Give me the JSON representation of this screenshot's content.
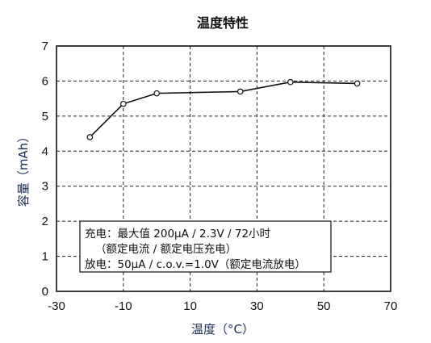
{
  "chart_data": {
    "type": "line",
    "title": "温度特性",
    "xlabel": "温度（°C）",
    "ylabel": "容量（mAh）",
    "xlim": [
      -30,
      70
    ],
    "ylim": [
      0,
      7
    ],
    "x_ticks": [
      -30,
      -10,
      10,
      30,
      50,
      70
    ],
    "x_gridlines": [
      -10,
      10,
      30,
      50
    ],
    "y_ticks": [
      0,
      1,
      2,
      3,
      4,
      5,
      6,
      7
    ],
    "grid": true,
    "series": [
      {
        "x": [
          -20,
          -10,
          0,
          25,
          40,
          60
        ],
        "y": [
          4.4,
          5.35,
          5.65,
          5.7,
          5.97,
          5.93
        ]
      }
    ],
    "annotation": {
      "lines": [
        "充电：最大值 200μA / 2.3V / 72小时",
        "（额定电流 / 额定电压充电）",
        "放电：50μA / c.o.v.=1.0V（额定电流放电）"
      ]
    }
  }
}
